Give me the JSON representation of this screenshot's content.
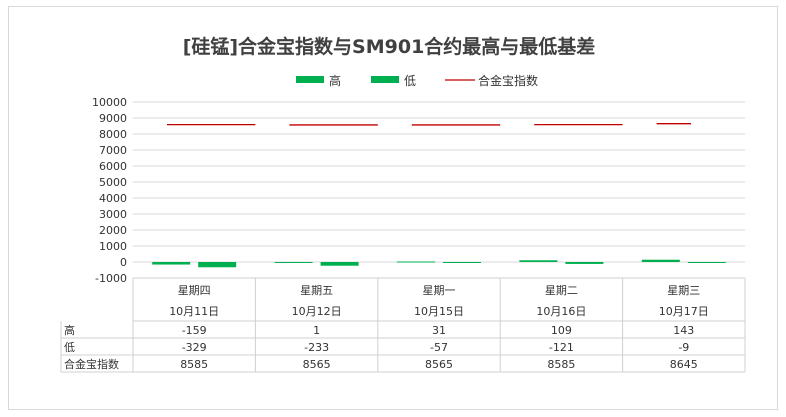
{
  "chart_data": {
    "type": "bar",
    "title": "[硅锰]合金宝指数与SM901合约最高与最低基差",
    "categories": [
      "星期四",
      "星期五",
      "星期一",
      "星期二",
      "星期三"
    ],
    "dates": [
      "10月11日",
      "10月12日",
      "10月15日",
      "10月16日",
      "10月17日"
    ],
    "series": [
      {
        "name": "高",
        "values": [
          -159,
          1,
          31,
          109,
          143
        ],
        "type": "bar",
        "color": "#00b050"
      },
      {
        "name": "低",
        "values": [
          -329,
          -233,
          -57,
          -121,
          -9
        ],
        "type": "bar",
        "color": "#00b050"
      },
      {
        "name": "合金宝指数",
        "values": [
          8585,
          8565,
          8565,
          8585,
          8645
        ],
        "type": "line",
        "color": "#c00000"
      }
    ],
    "ylim": [
      -1000,
      10000
    ],
    "yticks": [
      10000,
      9000,
      8000,
      7000,
      6000,
      5000,
      4000,
      3000,
      2000,
      1000,
      0,
      -1000
    ],
    "grid": true,
    "legend": "top-center",
    "data_table": true
  }
}
